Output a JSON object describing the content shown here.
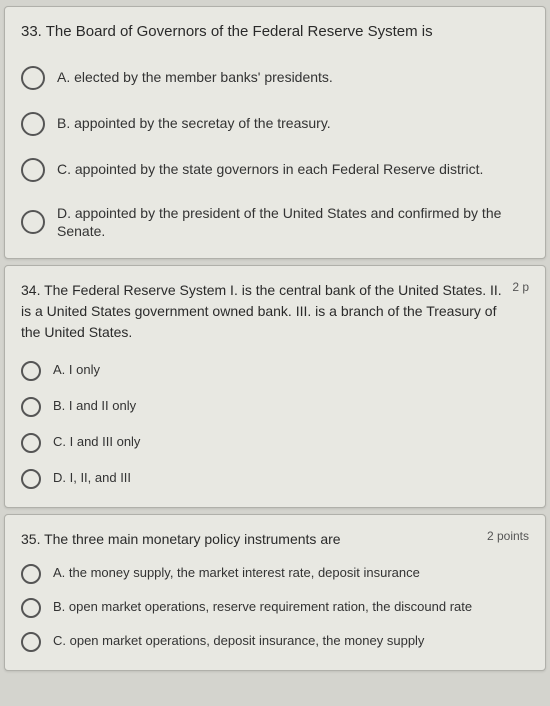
{
  "colors": {
    "page_bg": "#d4d4ce",
    "card_bg": "#e8e8e2",
    "card_border": "#b0b0aa",
    "text_primary": "#2a2a2a",
    "text_option": "#333333",
    "radio_border": "#555555"
  },
  "questions": [
    {
      "id": "q33",
      "number": "33",
      "text": "33. The Board of Governors of the Federal Reserve System is",
      "points": "",
      "options": [
        {
          "label": "A. elected by the member banks' presidents."
        },
        {
          "label": "B. appointed by the secretay of the treasury."
        },
        {
          "label": "C. appointed by the state governors in each Federal Reserve district."
        },
        {
          "label": "D. appointed by the president of the United States and confirmed by the Senate."
        }
      ]
    },
    {
      "id": "q34",
      "number": "34",
      "text": "34. The Federal Reserve System I. is the central bank of the United States. II. is a United States government owned bank. III. is a branch of the Treasury of the United States.",
      "points": "2 p",
      "options": [
        {
          "label": "A. I only"
        },
        {
          "label": "B. I and II only"
        },
        {
          "label": "C. I and III only"
        },
        {
          "label": "D. I, II, and III"
        }
      ]
    },
    {
      "id": "q35",
      "number": "35",
      "text": "35. The three main monetary policy instruments are",
      "points": "2 points",
      "options": [
        {
          "label": "A. the money supply, the market interest rate, deposit insurance"
        },
        {
          "label": "B. open market operations, reserve requirement ration, the discound rate"
        },
        {
          "label": "C. open market operations, deposit insurance, the money supply"
        }
      ]
    }
  ]
}
